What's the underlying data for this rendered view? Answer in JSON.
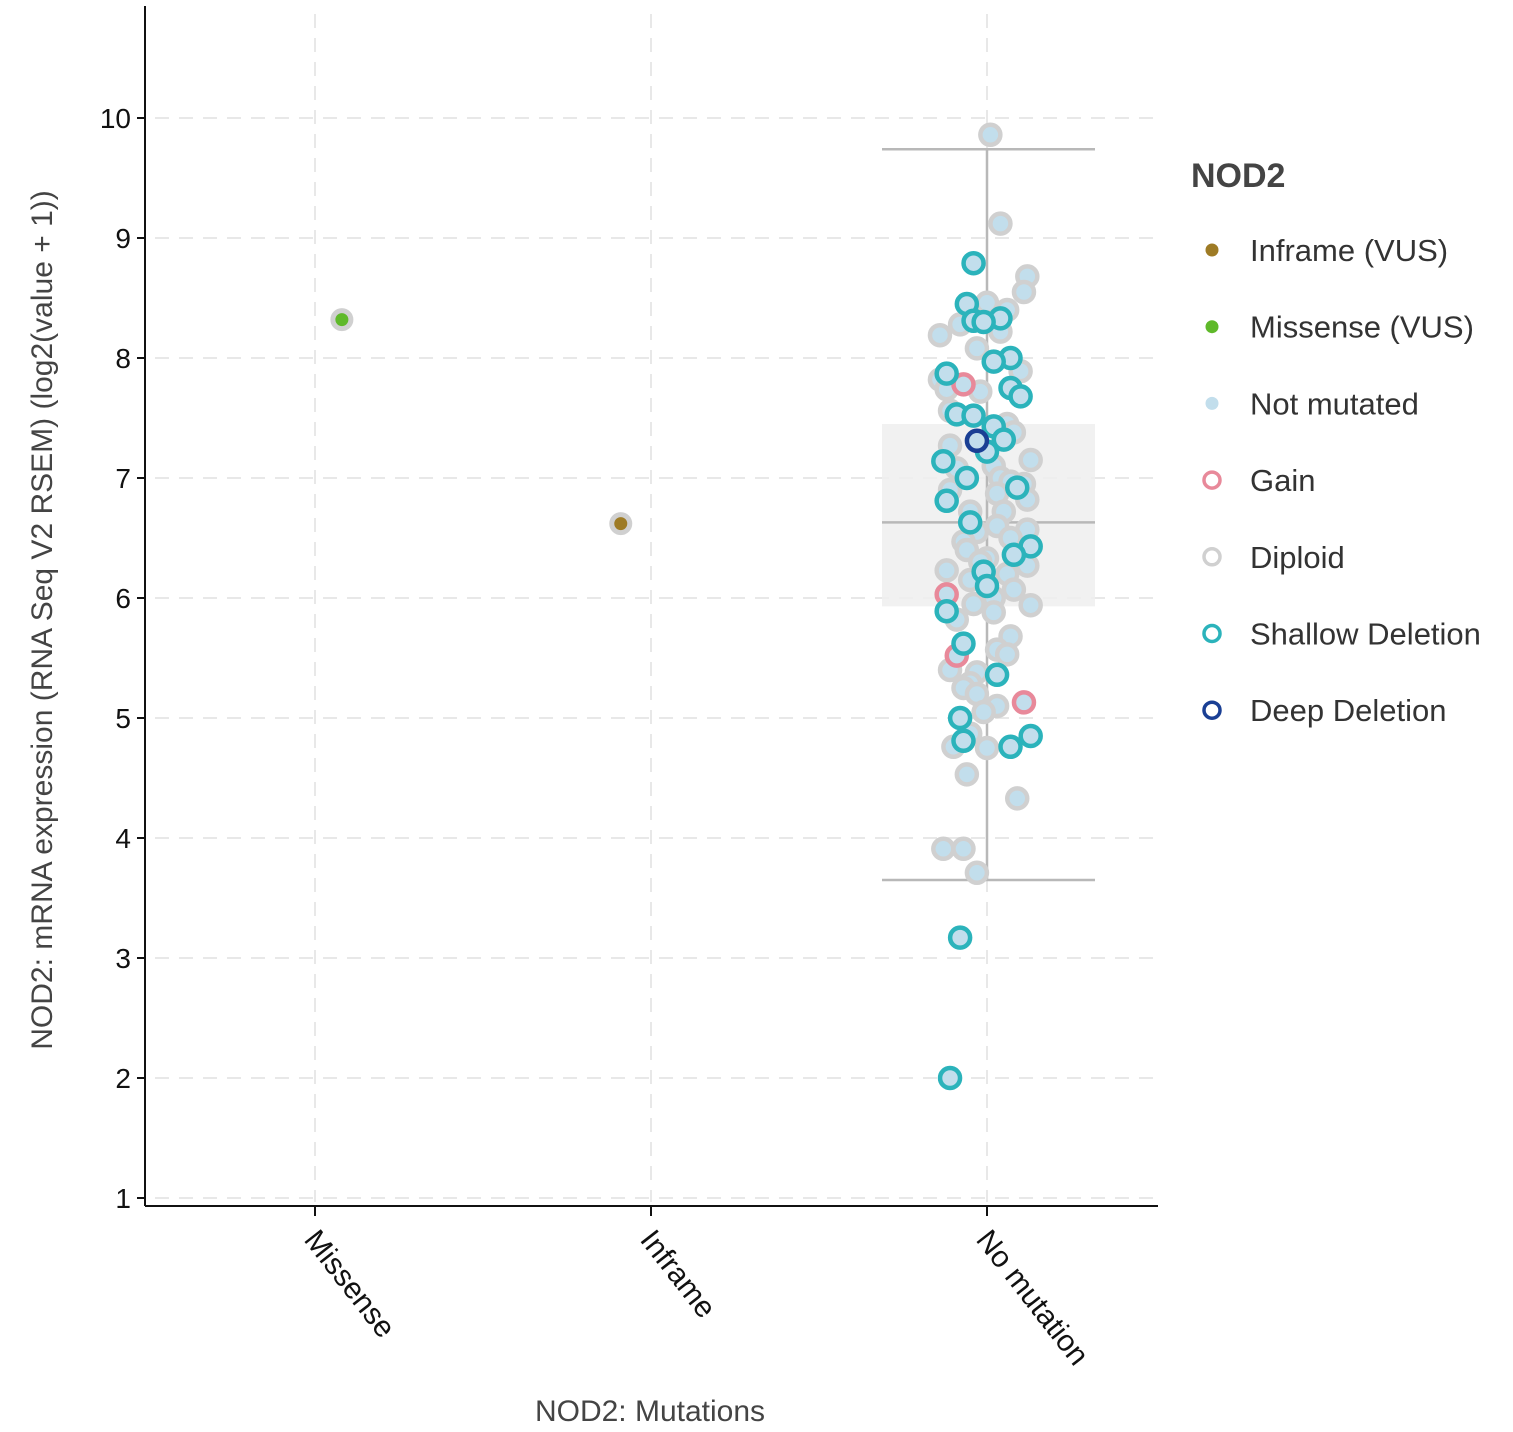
{
  "chart_data": {
    "type": "scatter",
    "subtype": "box-and-strip",
    "xlabel": "NOD2: Mutations",
    "ylabel": "NOD2: mRNA expression (RNA Seq V2 RSEM) (log2(value + 1))",
    "categories": [
      "Missense",
      "Inframe",
      "No mutation"
    ],
    "ylim": [
      0.9,
      10.9
    ],
    "yticks": [
      1,
      2,
      3,
      4,
      5,
      6,
      7,
      8,
      9,
      10
    ],
    "grid": true,
    "legend": {
      "title": "NOD2",
      "placement": "right",
      "entries": [
        {
          "label": "Inframe (VUS)",
          "style": "filled",
          "color": "#9e7b25"
        },
        {
          "label": "Missense (VUS)",
          "style": "filled",
          "color": "#5fb92a"
        },
        {
          "label": "Not mutated",
          "style": "filled",
          "color": "#c2deec"
        },
        {
          "label": "Gain",
          "style": "ring",
          "color": "#e8899a"
        },
        {
          "label": "Diploid",
          "style": "ring",
          "color": "#d0d0d0"
        },
        {
          "label": "Shallow Deletion",
          "style": "ring",
          "color": "#2bb3bb"
        },
        {
          "label": "Deep Deletion",
          "style": "ring",
          "color": "#1a3f94"
        }
      ]
    },
    "box": {
      "category": "No mutation",
      "whisker_low": 3.65,
      "q1": 5.93,
      "median": 6.63,
      "q3": 7.45,
      "whisker_high": 9.74
    },
    "colors": {
      "fill": {
        "missense": "#5fb92a",
        "inframe": "#9e7b25",
        "none": "#c2deec"
      },
      "stroke": {
        "gain": "#e8899a",
        "diploid": "#d0d0d0",
        "shallow": "#2bb3bb",
        "deep": "#1a3f94"
      }
    },
    "points": [
      {
        "x": "Missense",
        "dx": 0.08,
        "y": 8.32,
        "mut": "missense",
        "cna": "diploid"
      },
      {
        "x": "Inframe",
        "dx": -0.09,
        "y": 6.62,
        "mut": "inframe",
        "cna": "diploid"
      },
      {
        "x": "No mutation",
        "dx": 0.01,
        "y": 9.86,
        "mut": "none",
        "cna": "diploid"
      },
      {
        "x": "No mutation",
        "dx": 0.04,
        "y": 9.12,
        "mut": "none",
        "cna": "diploid"
      },
      {
        "x": "No mutation",
        "dx": -0.04,
        "y": 8.79,
        "mut": "none",
        "cna": "shallow"
      },
      {
        "x": "No mutation",
        "dx": 0.12,
        "y": 8.68,
        "mut": "none",
        "cna": "diploid"
      },
      {
        "x": "No mutation",
        "dx": 0.11,
        "y": 8.55,
        "mut": "none",
        "cna": "diploid"
      },
      {
        "x": "No mutation",
        "dx": 0.0,
        "y": 8.46,
        "mut": "none",
        "cna": "diploid"
      },
      {
        "x": "No mutation",
        "dx": -0.06,
        "y": 8.45,
        "mut": "none",
        "cna": "shallow"
      },
      {
        "x": "No mutation",
        "dx": 0.06,
        "y": 8.4,
        "mut": "none",
        "cna": "diploid"
      },
      {
        "x": "No mutation",
        "dx": 0.04,
        "y": 8.33,
        "mut": "none",
        "cna": "shallow"
      },
      {
        "x": "No mutation",
        "dx": -0.04,
        "y": 8.31,
        "mut": "none",
        "cna": "shallow"
      },
      {
        "x": "No mutation",
        "dx": -0.01,
        "y": 8.3,
        "mut": "none",
        "cna": "shallow"
      },
      {
        "x": "No mutation",
        "dx": -0.08,
        "y": 8.28,
        "mut": "none",
        "cna": "diploid"
      },
      {
        "x": "No mutation",
        "dx": 0.04,
        "y": 8.22,
        "mut": "none",
        "cna": "diploid"
      },
      {
        "x": "No mutation",
        "dx": -0.14,
        "y": 8.19,
        "mut": "none",
        "cna": "diploid"
      },
      {
        "x": "No mutation",
        "dx": -0.03,
        "y": 8.08,
        "mut": "none",
        "cna": "diploid"
      },
      {
        "x": "No mutation",
        "dx": 0.07,
        "y": 8.0,
        "mut": "none",
        "cna": "shallow"
      },
      {
        "x": "No mutation",
        "dx": 0.02,
        "y": 7.97,
        "mut": "none",
        "cna": "shallow"
      },
      {
        "x": "No mutation",
        "dx": 0.1,
        "y": 7.89,
        "mut": "none",
        "cna": "diploid"
      },
      {
        "x": "No mutation",
        "dx": -0.12,
        "y": 7.87,
        "mut": "none",
        "cna": "shallow"
      },
      {
        "x": "No mutation",
        "dx": -0.14,
        "y": 7.82,
        "mut": "none",
        "cna": "diploid"
      },
      {
        "x": "No mutation",
        "dx": -0.07,
        "y": 7.78,
        "mut": "none",
        "cna": "gain"
      },
      {
        "x": "No mutation",
        "dx": 0.07,
        "y": 7.75,
        "mut": "none",
        "cna": "shallow"
      },
      {
        "x": "No mutation",
        "dx": -0.12,
        "y": 7.74,
        "mut": "none",
        "cna": "diploid"
      },
      {
        "x": "No mutation",
        "dx": -0.02,
        "y": 7.72,
        "mut": "none",
        "cna": "diploid"
      },
      {
        "x": "No mutation",
        "dx": 0.1,
        "y": 7.68,
        "mut": "none",
        "cna": "shallow"
      },
      {
        "x": "No mutation",
        "dx": -0.11,
        "y": 7.56,
        "mut": "none",
        "cna": "diploid"
      },
      {
        "x": "No mutation",
        "dx": -0.09,
        "y": 7.53,
        "mut": "none",
        "cna": "shallow"
      },
      {
        "x": "No mutation",
        "dx": -0.04,
        "y": 7.52,
        "mut": "none",
        "cna": "shallow"
      },
      {
        "x": "No mutation",
        "dx": 0.06,
        "y": 7.45,
        "mut": "none",
        "cna": "diploid"
      },
      {
        "x": "No mutation",
        "dx": 0.02,
        "y": 7.43,
        "mut": "none",
        "cna": "shallow"
      },
      {
        "x": "No mutation",
        "dx": 0.08,
        "y": 7.38,
        "mut": "none",
        "cna": "diploid"
      },
      {
        "x": "No mutation",
        "dx": 0.05,
        "y": 7.32,
        "mut": "none",
        "cna": "shallow"
      },
      {
        "x": "No mutation",
        "dx": -0.03,
        "y": 7.31,
        "mut": "none",
        "cna": "deep"
      },
      {
        "x": "No mutation",
        "dx": -0.11,
        "y": 7.27,
        "mut": "none",
        "cna": "diploid"
      },
      {
        "x": "No mutation",
        "dx": 0.0,
        "y": 7.22,
        "mut": "none",
        "cna": "shallow"
      },
      {
        "x": "No mutation",
        "dx": 0.13,
        "y": 7.15,
        "mut": "none",
        "cna": "diploid"
      },
      {
        "x": "No mutation",
        "dx": -0.13,
        "y": 7.14,
        "mut": "none",
        "cna": "shallow"
      },
      {
        "x": "No mutation",
        "dx": -0.09,
        "y": 7.08,
        "mut": "none",
        "cna": "diploid"
      },
      {
        "x": "No mutation",
        "dx": 0.02,
        "y": 7.1,
        "mut": "none",
        "cna": "diploid"
      },
      {
        "x": "No mutation",
        "dx": -0.06,
        "y": 7.0,
        "mut": "none",
        "cna": "shallow"
      },
      {
        "x": "No mutation",
        "dx": 0.04,
        "y": 7.0,
        "mut": "none",
        "cna": "diploid"
      },
      {
        "x": "No mutation",
        "dx": 0.07,
        "y": 6.97,
        "mut": "none",
        "cna": "diploid"
      },
      {
        "x": "No mutation",
        "dx": 0.11,
        "y": 6.95,
        "mut": "none",
        "cna": "diploid"
      },
      {
        "x": "No mutation",
        "dx": 0.09,
        "y": 6.92,
        "mut": "none",
        "cna": "shallow"
      },
      {
        "x": "No mutation",
        "dx": -0.11,
        "y": 6.9,
        "mut": "none",
        "cna": "diploid"
      },
      {
        "x": "No mutation",
        "dx": 0.03,
        "y": 6.87,
        "mut": "none",
        "cna": "diploid"
      },
      {
        "x": "No mutation",
        "dx": 0.12,
        "y": 6.82,
        "mut": "none",
        "cna": "diploid"
      },
      {
        "x": "No mutation",
        "dx": -0.12,
        "y": 6.81,
        "mut": "none",
        "cna": "shallow"
      },
      {
        "x": "No mutation",
        "dx": -0.05,
        "y": 6.72,
        "mut": "none",
        "cna": "diploid"
      },
      {
        "x": "No mutation",
        "dx": 0.05,
        "y": 6.72,
        "mut": "none",
        "cna": "diploid"
      },
      {
        "x": "No mutation",
        "dx": -0.05,
        "y": 6.63,
        "mut": "none",
        "cna": "shallow"
      },
      {
        "x": "No mutation",
        "dx": 0.03,
        "y": 6.6,
        "mut": "none",
        "cna": "diploid"
      },
      {
        "x": "No mutation",
        "dx": 0.12,
        "y": 6.57,
        "mut": "none",
        "cna": "diploid"
      },
      {
        "x": "No mutation",
        "dx": -0.03,
        "y": 6.55,
        "mut": "none",
        "cna": "diploid"
      },
      {
        "x": "No mutation",
        "dx": 0.07,
        "y": 6.5,
        "mut": "none",
        "cna": "diploid"
      },
      {
        "x": "No mutation",
        "dx": -0.07,
        "y": 6.47,
        "mut": "none",
        "cna": "diploid"
      },
      {
        "x": "No mutation",
        "dx": 0.13,
        "y": 6.43,
        "mut": "none",
        "cna": "shallow"
      },
      {
        "x": "No mutation",
        "dx": -0.06,
        "y": 6.4,
        "mut": "none",
        "cna": "diploid"
      },
      {
        "x": "No mutation",
        "dx": 0.08,
        "y": 6.36,
        "mut": "none",
        "cna": "shallow"
      },
      {
        "x": "No mutation",
        "dx": 0.0,
        "y": 6.33,
        "mut": "none",
        "cna": "diploid"
      },
      {
        "x": "No mutation",
        "dx": -0.02,
        "y": 6.3,
        "mut": "none",
        "cna": "diploid"
      },
      {
        "x": "No mutation",
        "dx": 0.12,
        "y": 6.27,
        "mut": "none",
        "cna": "diploid"
      },
      {
        "x": "No mutation",
        "dx": -0.12,
        "y": 6.23,
        "mut": "none",
        "cna": "diploid"
      },
      {
        "x": "No mutation",
        "dx": -0.01,
        "y": 6.22,
        "mut": "none",
        "cna": "shallow"
      },
      {
        "x": "No mutation",
        "dx": 0.06,
        "y": 6.2,
        "mut": "none",
        "cna": "diploid"
      },
      {
        "x": "No mutation",
        "dx": -0.05,
        "y": 6.15,
        "mut": "none",
        "cna": "diploid"
      },
      {
        "x": "No mutation",
        "dx": 0.0,
        "y": 6.1,
        "mut": "none",
        "cna": "shallow"
      },
      {
        "x": "No mutation",
        "dx": 0.08,
        "y": 6.07,
        "mut": "none",
        "cna": "diploid"
      },
      {
        "x": "No mutation",
        "dx": -0.12,
        "y": 6.03,
        "mut": "none",
        "cna": "gain"
      },
      {
        "x": "No mutation",
        "dx": 0.02,
        "y": 6.0,
        "mut": "none",
        "cna": "diploid"
      },
      {
        "x": "No mutation",
        "dx": -0.04,
        "y": 5.95,
        "mut": "none",
        "cna": "diploid"
      },
      {
        "x": "No mutation",
        "dx": 0.13,
        "y": 5.94,
        "mut": "none",
        "cna": "diploid"
      },
      {
        "x": "No mutation",
        "dx": -0.12,
        "y": 5.89,
        "mut": "none",
        "cna": "shallow"
      },
      {
        "x": "No mutation",
        "dx": 0.02,
        "y": 5.88,
        "mut": "none",
        "cna": "diploid"
      },
      {
        "x": "No mutation",
        "dx": -0.09,
        "y": 5.82,
        "mut": "none",
        "cna": "diploid"
      },
      {
        "x": "No mutation",
        "dx": 0.07,
        "y": 5.68,
        "mut": "none",
        "cna": "diploid"
      },
      {
        "x": "No mutation",
        "dx": -0.07,
        "y": 5.62,
        "mut": "none",
        "cna": "shallow"
      },
      {
        "x": "No mutation",
        "dx": 0.03,
        "y": 5.57,
        "mut": "none",
        "cna": "diploid"
      },
      {
        "x": "No mutation",
        "dx": 0.06,
        "y": 5.53,
        "mut": "none",
        "cna": "diploid"
      },
      {
        "x": "No mutation",
        "dx": -0.09,
        "y": 5.52,
        "mut": "none",
        "cna": "gain"
      },
      {
        "x": "No mutation",
        "dx": -0.11,
        "y": 5.4,
        "mut": "none",
        "cna": "diploid"
      },
      {
        "x": "No mutation",
        "dx": -0.03,
        "y": 5.38,
        "mut": "none",
        "cna": "diploid"
      },
      {
        "x": "No mutation",
        "dx": 0.03,
        "y": 5.36,
        "mut": "none",
        "cna": "shallow"
      },
      {
        "x": "No mutation",
        "dx": -0.05,
        "y": 5.29,
        "mut": "none",
        "cna": "diploid"
      },
      {
        "x": "No mutation",
        "dx": -0.07,
        "y": 5.25,
        "mut": "none",
        "cna": "diploid"
      },
      {
        "x": "No mutation",
        "dx": -0.03,
        "y": 5.2,
        "mut": "none",
        "cna": "diploid"
      },
      {
        "x": "No mutation",
        "dx": 0.11,
        "y": 5.13,
        "mut": "none",
        "cna": "gain"
      },
      {
        "x": "No mutation",
        "dx": 0.03,
        "y": 5.1,
        "mut": "none",
        "cna": "diploid"
      },
      {
        "x": "No mutation",
        "dx": -0.01,
        "y": 5.05,
        "mut": "none",
        "cna": "diploid"
      },
      {
        "x": "No mutation",
        "dx": -0.08,
        "y": 5.0,
        "mut": "none",
        "cna": "shallow"
      },
      {
        "x": "No mutation",
        "dx": -0.05,
        "y": 4.87,
        "mut": "none",
        "cna": "diploid"
      },
      {
        "x": "No mutation",
        "dx": 0.13,
        "y": 4.85,
        "mut": "none",
        "cna": "shallow"
      },
      {
        "x": "No mutation",
        "dx": -0.07,
        "y": 4.81,
        "mut": "none",
        "cna": "shallow"
      },
      {
        "x": "No mutation",
        "dx": -0.1,
        "y": 4.76,
        "mut": "none",
        "cna": "diploid"
      },
      {
        "x": "No mutation",
        "dx": 0.0,
        "y": 4.75,
        "mut": "none",
        "cna": "diploid"
      },
      {
        "x": "No mutation",
        "dx": 0.07,
        "y": 4.76,
        "mut": "none",
        "cna": "shallow"
      },
      {
        "x": "No mutation",
        "dx": -0.06,
        "y": 4.53,
        "mut": "none",
        "cna": "diploid"
      },
      {
        "x": "No mutation",
        "dx": 0.09,
        "y": 4.33,
        "mut": "none",
        "cna": "diploid"
      },
      {
        "x": "No mutation",
        "dx": -0.13,
        "y": 3.91,
        "mut": "none",
        "cna": "diploid"
      },
      {
        "x": "No mutation",
        "dx": -0.07,
        "y": 3.91,
        "mut": "none",
        "cna": "diploid"
      },
      {
        "x": "No mutation",
        "dx": -0.03,
        "y": 3.71,
        "mut": "none",
        "cna": "diploid"
      },
      {
        "x": "No mutation",
        "dx": -0.08,
        "y": 3.17,
        "mut": "none",
        "cna": "shallow"
      },
      {
        "x": "No mutation",
        "dx": -0.11,
        "y": 2.0,
        "mut": "none",
        "cna": "shallow"
      }
    ]
  }
}
